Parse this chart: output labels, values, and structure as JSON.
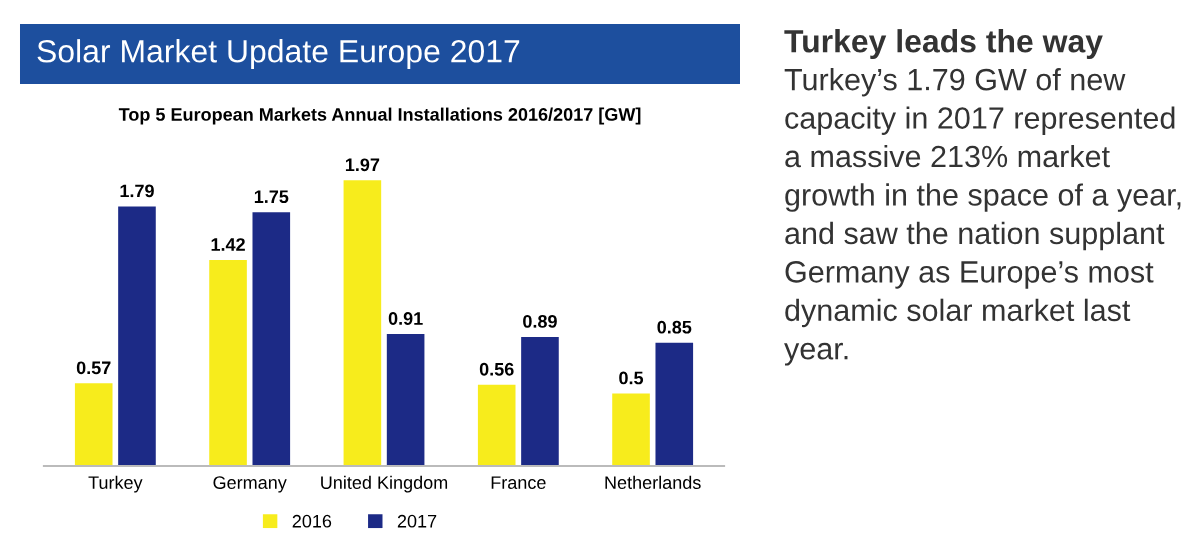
{
  "chart_data": {
    "type": "bar",
    "title": "Solar Market Update Europe 2017",
    "subtitle": "Top 5 European Markets Annual Installations 2016/2017 [GW]",
    "categories": [
      "Turkey",
      "Germany",
      "United Kingdom",
      "France",
      "Netherlands"
    ],
    "series": [
      {
        "name": "2016",
        "color": "#f7ec1c",
        "values": [
          0.57,
          1.42,
          1.97,
          0.56,
          0.5
        ]
      },
      {
        "name": "2017",
        "color": "#1c2a86",
        "values": [
          1.79,
          1.75,
          0.91,
          0.89,
          0.85
        ]
      }
    ],
    "data_labels": true,
    "legend": "bottom",
    "grid": false,
    "annotations": [
      "Turkey leads the way",
      "Turkey’s 1.79 GW of new capacity in 2017 represented a massive 213% market growth in the space of a year, and saw the nation supplant Germany as Europe’s most dynamic solar market last year."
    ]
  }
}
